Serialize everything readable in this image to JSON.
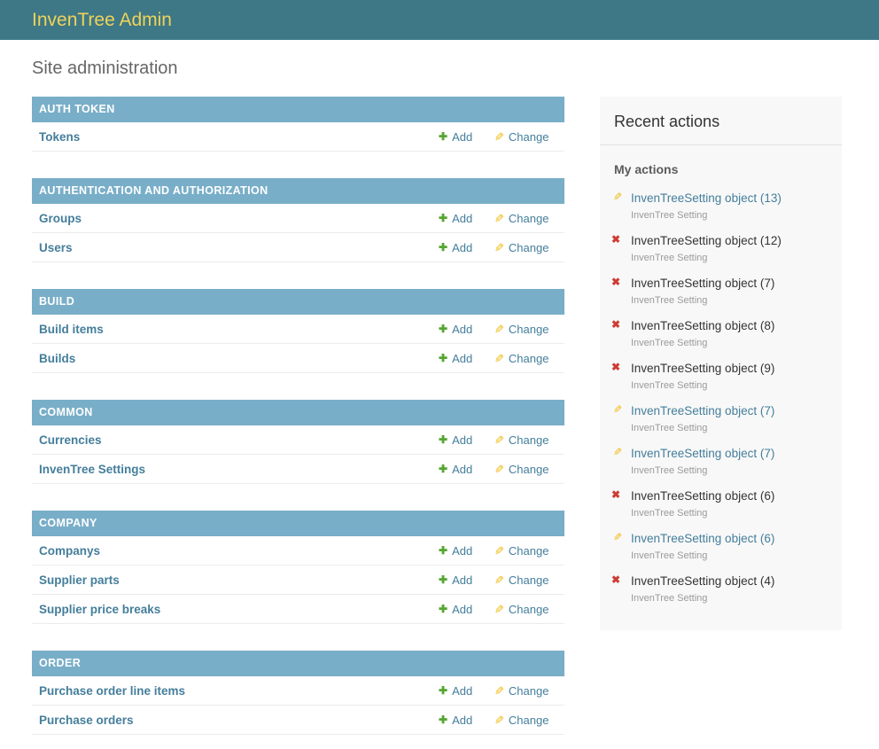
{
  "header": {
    "title": "InvenTree Admin"
  },
  "page": {
    "title": "Site administration"
  },
  "links": {
    "add_label": "Add",
    "change_label": "Change"
  },
  "icons": {
    "add_glyph": "✚",
    "change_glyph": "✎",
    "delete_glyph": "✖"
  },
  "colors": {
    "header_bg": "#3e7886",
    "header_title": "#efd358",
    "module_caption_bg": "#79aec8",
    "link_blue": "#447e9b",
    "add_green": "#55a532",
    "change_gold": "#efb80b",
    "delete_red": "#ce3b34",
    "sidebar_bg": "#f8f8f8"
  },
  "modules": [
    {
      "caption": "AUTH TOKEN",
      "rows": [
        {
          "name": "Tokens"
        }
      ]
    },
    {
      "caption": "AUTHENTICATION AND AUTHORIZATION",
      "rows": [
        {
          "name": "Groups"
        },
        {
          "name": "Users"
        }
      ]
    },
    {
      "caption": "BUILD",
      "rows": [
        {
          "name": "Build items"
        },
        {
          "name": "Builds"
        }
      ]
    },
    {
      "caption": "COMMON",
      "rows": [
        {
          "name": "Currencies"
        },
        {
          "name": "InvenTree Settings"
        }
      ]
    },
    {
      "caption": "COMPANY",
      "rows": [
        {
          "name": "Companys"
        },
        {
          "name": "Supplier parts"
        },
        {
          "name": "Supplier price breaks"
        }
      ]
    },
    {
      "caption": "ORDER",
      "rows": [
        {
          "name": "Purchase order line items"
        },
        {
          "name": "Purchase orders"
        }
      ]
    }
  ],
  "recent": {
    "title": "Recent actions",
    "subtitle": "My actions",
    "items": [
      {
        "type": "change",
        "label": "InvenTreeSetting object (13)",
        "meta": "InvenTree Setting"
      },
      {
        "type": "delete",
        "label": "InvenTreeSetting object (12)",
        "meta": "InvenTree Setting"
      },
      {
        "type": "delete",
        "label": "InvenTreeSetting object (7)",
        "meta": "InvenTree Setting"
      },
      {
        "type": "delete",
        "label": "InvenTreeSetting object (8)",
        "meta": "InvenTree Setting"
      },
      {
        "type": "delete",
        "label": "InvenTreeSetting object (9)",
        "meta": "InvenTree Setting"
      },
      {
        "type": "change",
        "label": "InvenTreeSetting object (7)",
        "meta": "InvenTree Setting"
      },
      {
        "type": "change",
        "label": "InvenTreeSetting object (7)",
        "meta": "InvenTree Setting"
      },
      {
        "type": "delete",
        "label": "InvenTreeSetting object (6)",
        "meta": "InvenTree Setting"
      },
      {
        "type": "change",
        "label": "InvenTreeSetting object (6)",
        "meta": "InvenTree Setting"
      },
      {
        "type": "delete",
        "label": "InvenTreeSetting object (4)",
        "meta": "InvenTree Setting"
      }
    ]
  }
}
